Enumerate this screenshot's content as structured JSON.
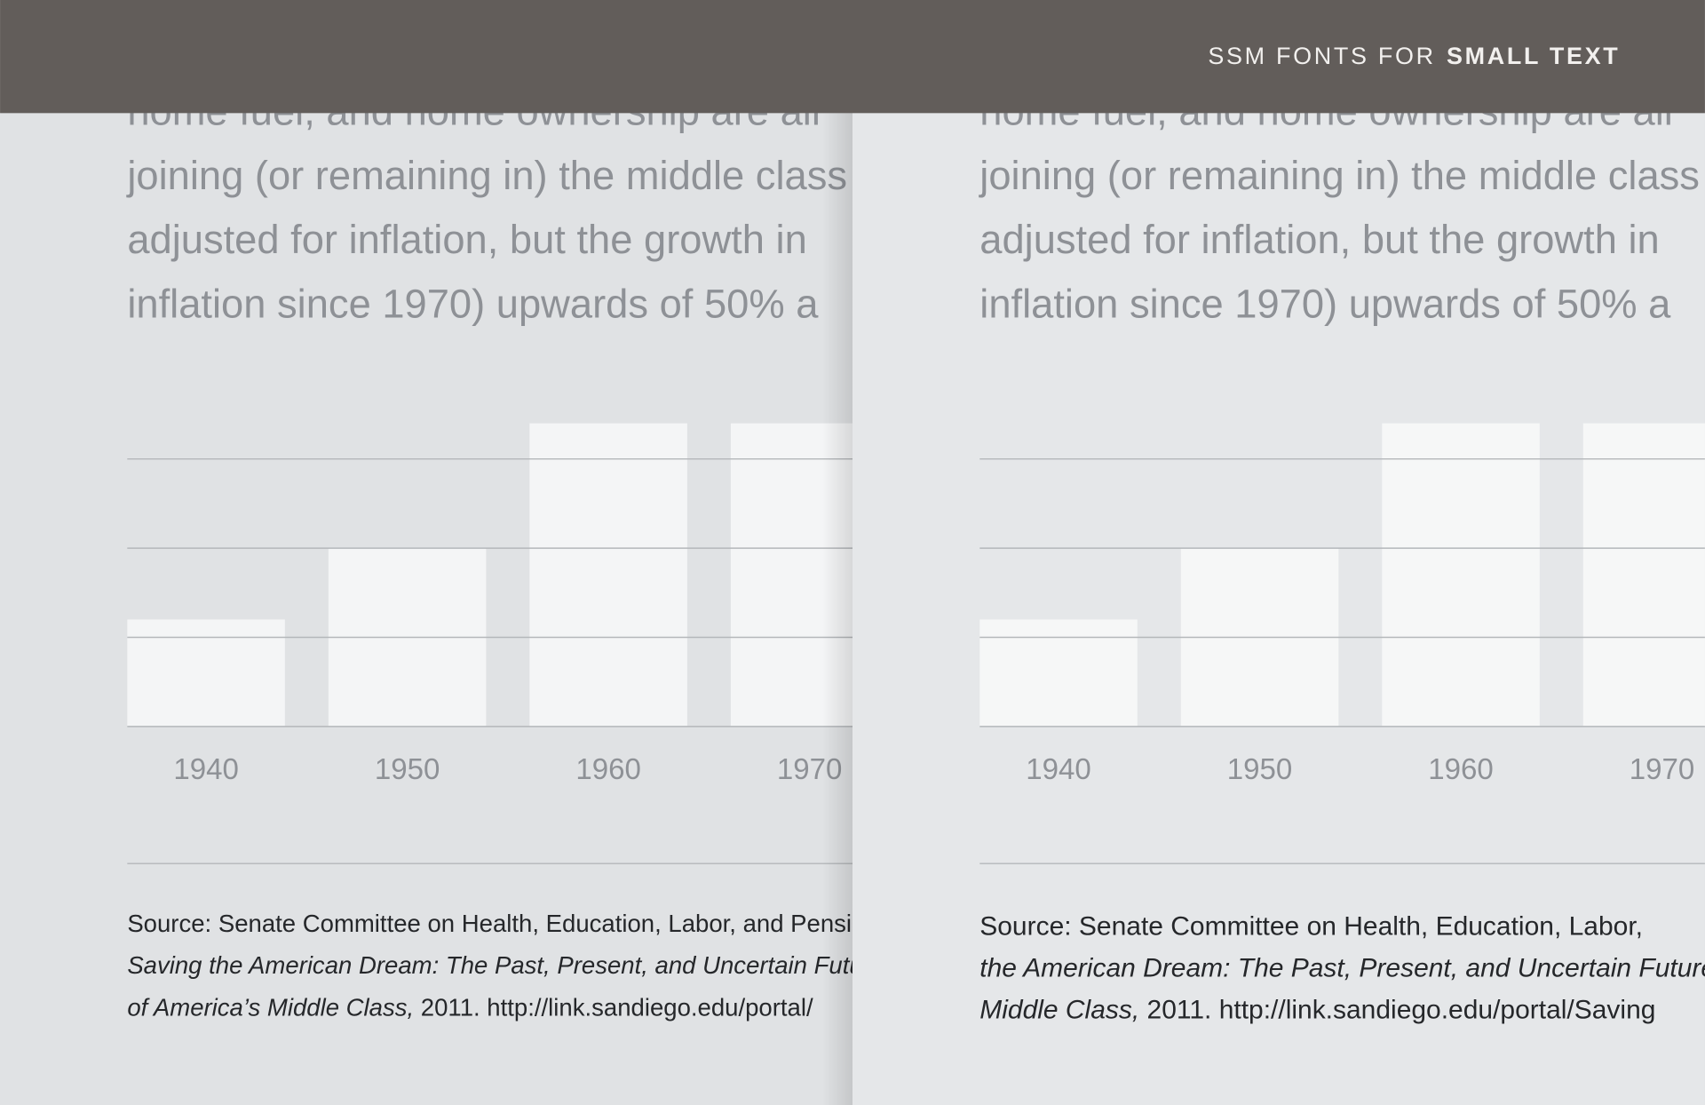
{
  "header": {
    "title_regular": "SSM FONTS FOR",
    "title_bold": "SMALL TEXT"
  },
  "panels": [
    {
      "body_lines": [
        "home fuel, and home ownership are all",
        "joining (or remaining in) the middle class",
        "adjusted for inflation, but the growth in",
        "inflation since 1970) upwards of 50% a"
      ],
      "chart": {
        "type": "bar",
        "categories": [
          "1940",
          "1950",
          "1960",
          "1970"
        ],
        "values": [
          1.2,
          2,
          3.4,
          3.4
        ],
        "color": "#f4f5f6",
        "ylim": [
          0,
          4
        ],
        "yticks": [
          0,
          1,
          2,
          3
        ],
        "grid": true
      },
      "source_lines": [
        [
          {
            "text": "Source: Senate Committee on Health, Education, Labor, and Pensions.",
            "italic": false
          }
        ],
        [
          {
            "text": "Saving the American Dream: The Past, Present, and Uncertain Future",
            "italic": true
          }
        ],
        [
          {
            "text": "of America’s Middle Class,",
            "italic": true
          },
          {
            "text": " 2011. http://link.sandiego.edu/portal/",
            "italic": false
          }
        ]
      ]
    },
    {
      "body_lines": [
        "home fuel, and home ownership are all",
        "joining (or remaining in) the middle class",
        "adjusted for inflation, but the growth in",
        "inflation since 1970) upwards of 50% a"
      ],
      "chart": {
        "type": "bar",
        "categories": [
          "1940",
          "1950",
          "1960",
          "1970"
        ],
        "values": [
          1.2,
          2,
          3.4,
          3.4
        ],
        "color": "#f6f7f7",
        "ylim": [
          0,
          4
        ],
        "yticks": [
          0,
          1,
          2,
          3
        ],
        "grid": true
      },
      "source_lines": [
        [
          {
            "text": "Source: Senate Committee on Health, Education, Labor,",
            "italic": false
          }
        ],
        [
          {
            "text": "the American Dream: The Past, Present, and Uncertain Future",
            "italic": true
          }
        ],
        [
          {
            "text": "Middle Class,",
            "italic": true
          },
          {
            "text": " 2011. http://link.sandiego.edu/portal/Saving",
            "italic": false
          }
        ]
      ]
    }
  ]
}
